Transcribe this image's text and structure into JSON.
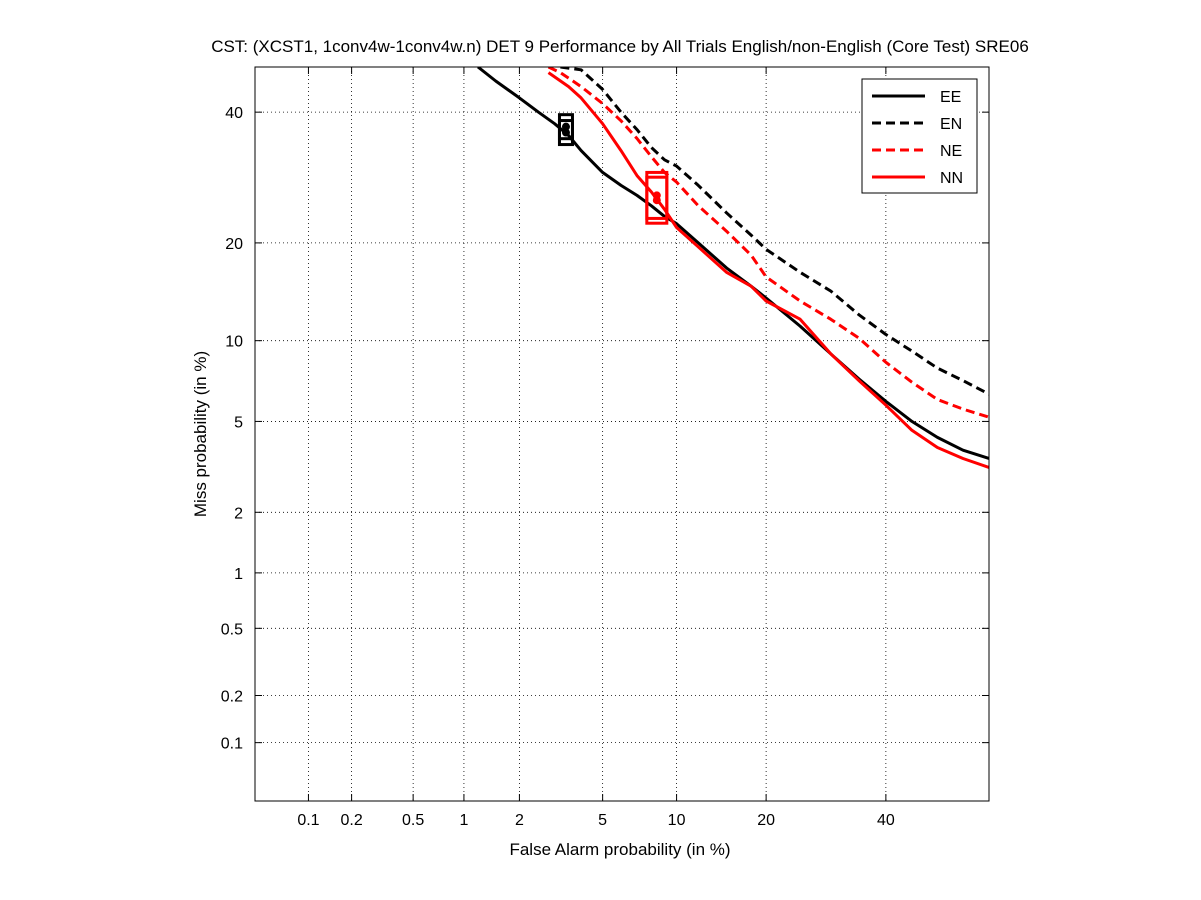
{
  "chart_data": {
    "type": "line",
    "title": "CST: (XCST1, 1conv4w-1conv4w.n) DET 9 Performance by All Trials English/non-English (Core Test) SRE06",
    "xlabel": "False Alarm probability (in %)",
    "ylabel": "Miss probability (in %)",
    "x_scale": "probit",
    "y_scale": "probit",
    "xlim": [
      0.04,
      60
    ],
    "ylim": [
      0.04,
      48
    ],
    "x_ticks": [
      0.1,
      0.2,
      0.5,
      1,
      2,
      5,
      10,
      20,
      40
    ],
    "x_tick_labels": [
      "0.1",
      "0.2",
      "0.5",
      "1",
      "2",
      "5",
      "10",
      "20",
      "40"
    ],
    "y_ticks": [
      0.1,
      0.2,
      0.5,
      1,
      2,
      5,
      10,
      20,
      40
    ],
    "y_tick_labels": [
      "0.1",
      "0.2",
      "0.5",
      "1",
      "2",
      "5",
      "10",
      "20",
      "40"
    ],
    "grid": true,
    "legend_position": "top-right",
    "series": [
      {
        "name": "EE",
        "color": "#000000",
        "dash": "solid",
        "x": [
          1.2,
          1.5,
          2,
          2.5,
          3,
          3.5,
          4,
          5,
          6,
          7,
          8,
          9,
          10,
          12,
          15,
          18,
          20,
          25,
          30,
          35,
          40,
          45,
          50,
          55,
          60
        ],
        "y": [
          48,
          45.5,
          42.5,
          40,
          38,
          36,
          33.5,
          30,
          28,
          26.5,
          25,
          23.5,
          22.5,
          20,
          17,
          15,
          13.8,
          11.2,
          9.0,
          7.3,
          6.0,
          5.0,
          4.3,
          3.8,
          3.5
        ],
        "point": {
          "x": 3.4,
          "y": 36.5
        }
      },
      {
        "name": "EN",
        "color": "#000000",
        "dash": "dashed",
        "x": [
          3.2,
          4,
          5,
          6,
          7,
          8,
          9,
          10,
          12,
          15,
          18,
          20,
          25,
          30,
          35,
          40,
          45,
          50,
          55,
          60
        ],
        "y": [
          48,
          47.5,
          44,
          40,
          37,
          34,
          32,
          31,
          28,
          24,
          21,
          19.2,
          16.5,
          14.5,
          12.2,
          10.5,
          9.2,
          8.0,
          7.2,
          6.4
        ],
        "point": {
          "x": 3.4,
          "y": 37.5
        }
      },
      {
        "name": "NE",
        "color": "#ff0000",
        "dash": "dashed",
        "x": [
          2.8,
          3.2,
          4,
          5,
          6,
          7,
          8,
          9,
          10,
          12,
          15,
          18,
          20,
          25,
          30,
          35,
          40,
          45,
          50,
          55,
          60
        ],
        "y": [
          48,
          47,
          44.5,
          41.5,
          38.5,
          35.5,
          32.5,
          30,
          28.5,
          25,
          21.5,
          18.5,
          16,
          13.5,
          11.8,
          10.2,
          8.4,
          7.1,
          6.1,
          5.6,
          5.2
        ],
        "point": {
          "x": 8.4,
          "y": 26.5
        }
      },
      {
        "name": "NN",
        "color": "#ff0000",
        "dash": "solid",
        "x": [
          2.8,
          3.5,
          4,
          5,
          6,
          7,
          8,
          9,
          10,
          12,
          15,
          18,
          20,
          25,
          30,
          35,
          40,
          45,
          50,
          55,
          60
        ],
        "y": [
          47,
          44.5,
          42.5,
          38,
          33.5,
          29.5,
          27,
          24.5,
          22,
          19.5,
          16.5,
          15,
          13.5,
          11.8,
          9.0,
          7.2,
          5.8,
          4.6,
          3.9,
          3.5,
          3.2
        ],
        "point": {
          "x": 8.4,
          "y": 25.8
        }
      }
    ]
  }
}
